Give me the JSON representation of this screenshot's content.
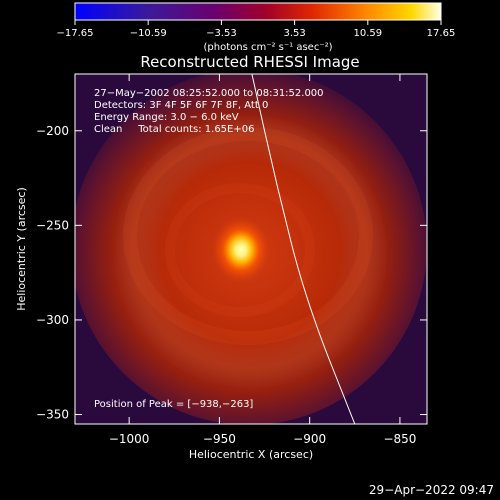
{
  "chart_data": {
    "type": "heatmap",
    "title": "Reconstructed RHESSI Image",
    "xlabel": "Heliocentric X (arcsec)",
    "ylabel": "Heliocentric Y (arcsec)",
    "xlim": [
      -1030,
      -835
    ],
    "ylim": [
      -355,
      -170
    ],
    "xticks": [
      -1000,
      -950,
      -900,
      -850
    ],
    "yticks": [
      -200,
      -250,
      -300,
      -350
    ],
    "xtick_labels": [
      "−1000",
      "−950",
      "−900",
      "−850"
    ],
    "ytick_labels": [
      "−200",
      "−250",
      "−300",
      "−350"
    ],
    "colorbar": {
      "min": -17.65,
      "max": 17.65,
      "tick_values": [
        -17.65,
        -10.59,
        -3.53,
        3.53,
        10.59,
        17.65
      ],
      "tick_labels": [
        "−17.65",
        "−10.59",
        "−3.53",
        "3.53",
        "10.59",
        "17.65"
      ],
      "unit_label": "(photons cm⁻² s⁻¹ asec⁻²)"
    },
    "info_lines": [
      "27−May−2002 08:25:52.000 to 08:31:52.000",
      "Detectors: 3F 4F 5F 6F 7F 8F, Att 0",
      "Energy Range: 3.0 − 6.0 keV",
      "Clean     Total counts: 1.65E+06"
    ],
    "peak_label": "Position of Peak = [−938,−263]",
    "peak": {
      "x": -938,
      "y": -263
    },
    "limb_points": [
      [
        -932,
        -170
      ],
      [
        -918,
        -230
      ],
      [
        -902,
        -290
      ],
      [
        -875,
        -355
      ]
    ],
    "footer_timestamp": "29−Apr−2022 09:47",
    "colors": {
      "background": "#000000",
      "text": "#ffffff",
      "low": "#2a0a3c",
      "mid": "#b82800",
      "high": "#ffff99",
      "limb": "#ffffff"
    }
  }
}
